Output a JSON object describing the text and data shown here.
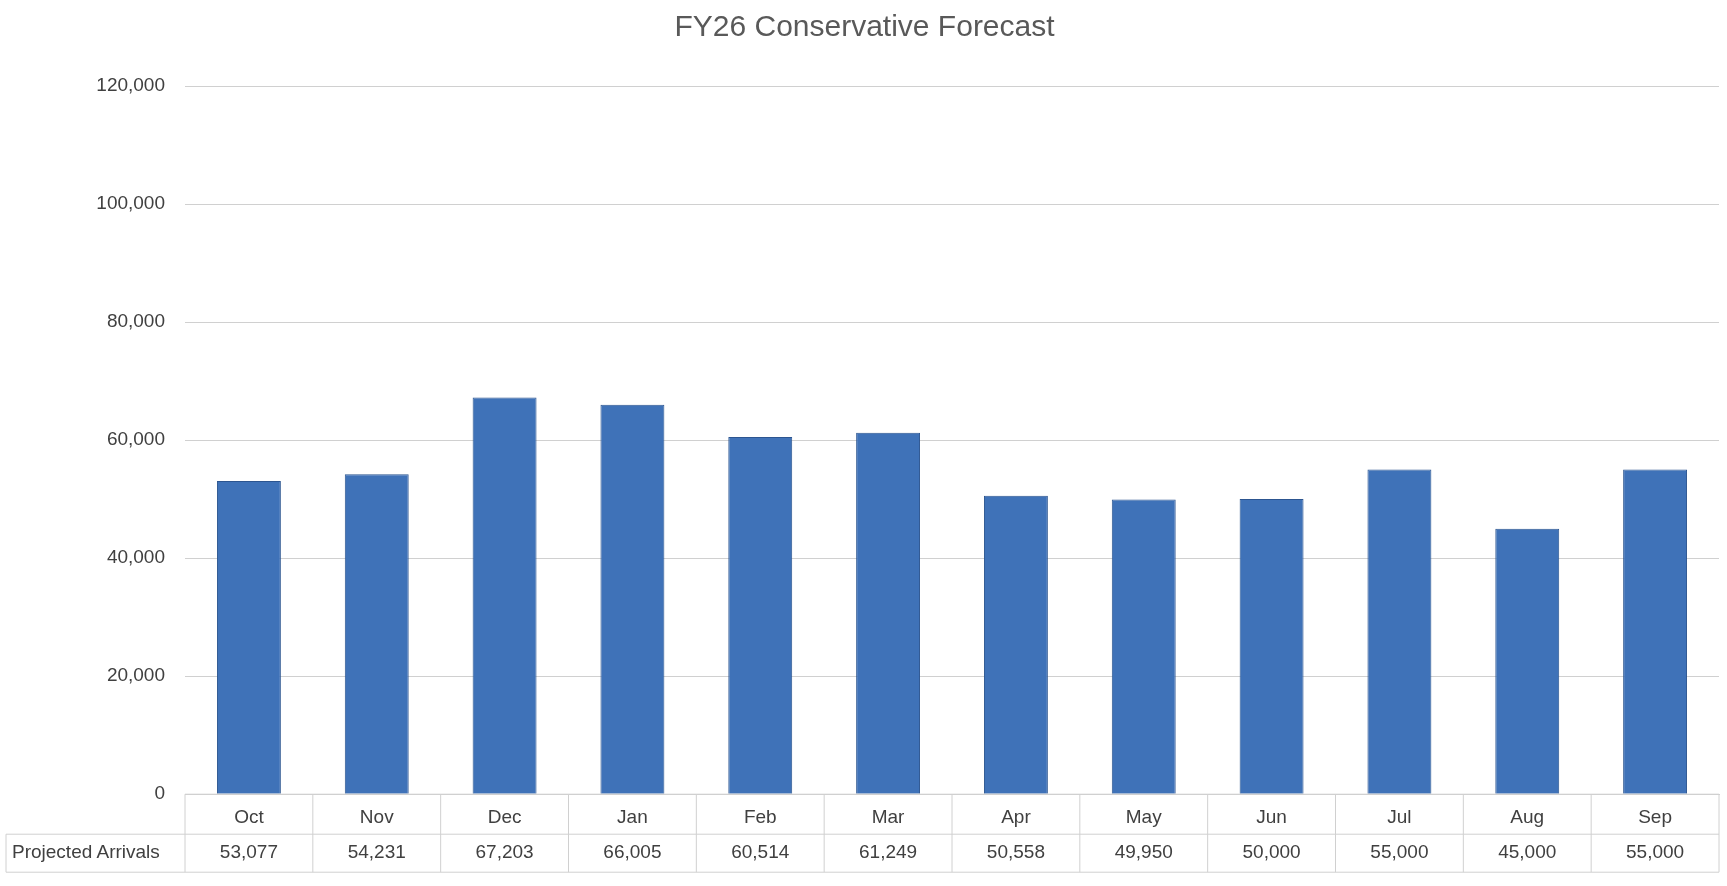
{
  "chart_data": {
    "type": "bar",
    "title": "FY26 Conservative Forecast",
    "categories": [
      "Oct",
      "Nov",
      "Dec",
      "Jan",
      "Feb",
      "Mar",
      "Apr",
      "May",
      "Jun",
      "Jul",
      "Aug",
      "Sep"
    ],
    "series": [
      {
        "name": "Projected Arrivals",
        "color": "#3f72b8",
        "values": [
          53077,
          54231,
          67203,
          66005,
          60514,
          61249,
          50558,
          49950,
          50000,
          55000,
          45000,
          55000
        ],
        "value_labels": [
          "53,077",
          "54,231",
          "67,203",
          "66,005",
          "60,514",
          "61,249",
          "50,558",
          "49,950",
          "50,000",
          "55,000",
          "45,000",
          "55,000"
        ]
      }
    ],
    "ylim": [
      0,
      120000
    ],
    "yticks": [
      0,
      {
        "value": 20000,
        "label": "20,000"
      },
      {
        "value": 40000,
        "label": "40,000"
      },
      {
        "value": 60000,
        "label": "60,000"
      },
      {
        "value": 80000,
        "label": "80,000"
      },
      {
        "value": 100000,
        "label": "100,000"
      },
      {
        "value": 120000,
        "label": "120,000"
      }
    ],
    "grid": "y",
    "legend": false
  }
}
